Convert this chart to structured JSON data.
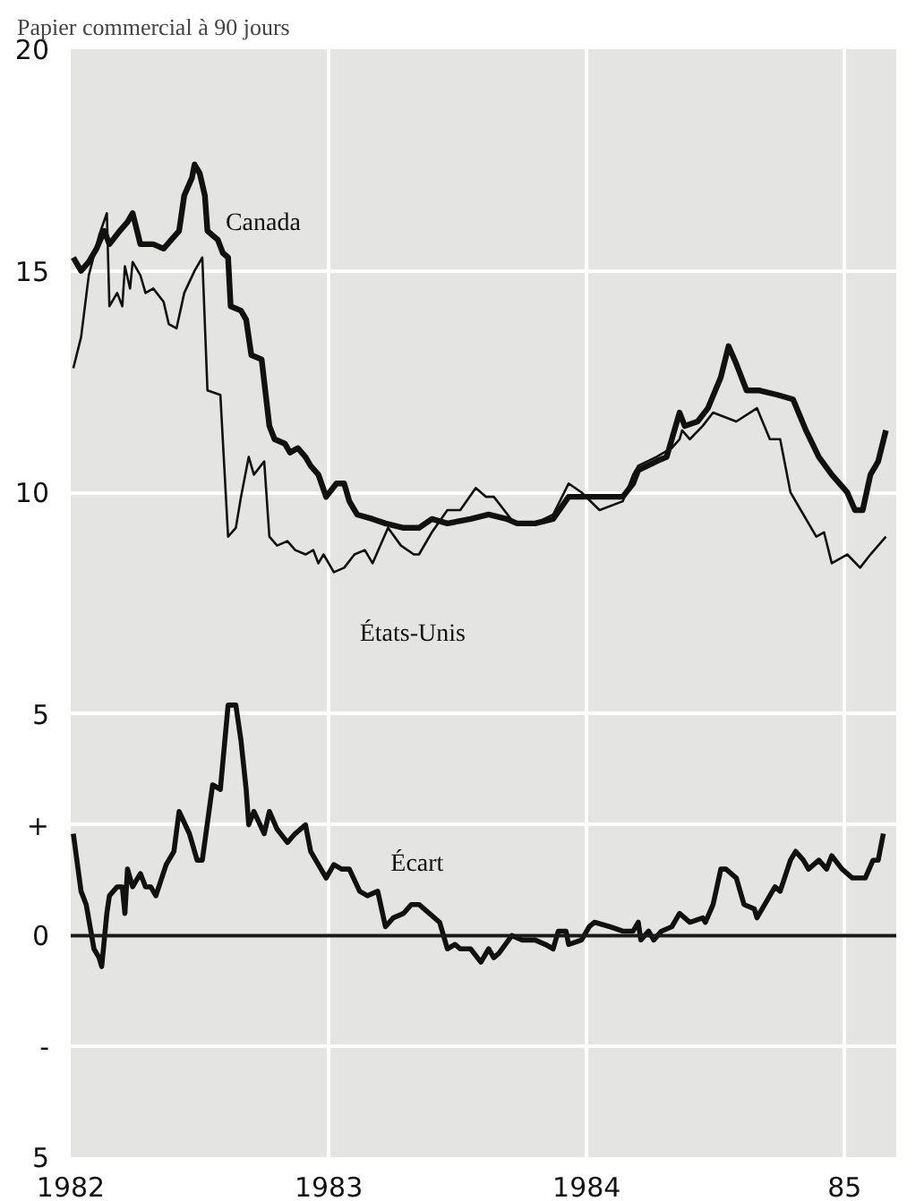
{
  "chart_data": {
    "type": "line",
    "title": "Papier commercial à 90 jours",
    "xlim": [
      1982,
      1985.2
    ],
    "ylim": [
      -5,
      20
    ],
    "xticks": [
      1982,
      1983,
      1984,
      {
        "value": 1985,
        "label": "85"
      }
    ],
    "yticks": [
      20,
      15,
      10,
      5,
      {
        "value": 2.5,
        "label": "+"
      },
      0,
      {
        "value": -2.5,
        "label": "-"
      },
      {
        "value": -5,
        "label": "5"
      }
    ],
    "grid": true,
    "marker": "none",
    "line_style": "solid",
    "ref_lines": [
      {
        "axis": "y",
        "value": 0,
        "label": null,
        "color": "#1a1a1a"
      }
    ],
    "series": [
      {
        "name": "Canada",
        "color": "#111111",
        "x": [
          1982.01,
          1982.04,
          1982.07,
          1982.1,
          1982.13,
          1982.15,
          1982.19,
          1982.22,
          1982.24,
          1982.27,
          1982.32,
          1982.36,
          1982.39,
          1982.42,
          1982.44,
          1982.47,
          1982.48,
          1982.5,
          1982.52,
          1982.53,
          1982.57,
          1982.59,
          1982.61,
          1982.62,
          1982.66,
          1982.68,
          1982.7,
          1982.74,
          1982.77,
          1982.79,
          1982.83,
          1982.85,
          1982.88,
          1982.91,
          1982.93,
          1982.96,
          1982.99,
          1983.03,
          1983.06,
          1983.08,
          1983.11,
          1983.17,
          1983.22,
          1983.29,
          1983.35,
          1983.4,
          1983.46,
          1983.55,
          1983.62,
          1983.69,
          1983.73,
          1983.8,
          1983.87,
          1983.93,
          1983.98,
          1984.05,
          1984.14,
          1984.18,
          1984.2,
          1984.27,
          1984.31,
          1984.36,
          1984.38,
          1984.43,
          1984.47,
          1984.52,
          1984.55,
          1984.58,
          1984.62,
          1984.67,
          1984.74,
          1984.8,
          1984.85,
          1984.9,
          1984.95,
          1985.01,
          1985.04,
          1985.07,
          1985.1,
          1985.13,
          1985.16
        ],
        "values": [
          15.3,
          15.0,
          15.2,
          15.5,
          15.9,
          15.6,
          15.9,
          16.1,
          16.3,
          15.6,
          15.6,
          15.5,
          15.7,
          15.9,
          16.7,
          17.1,
          17.4,
          17.2,
          16.7,
          15.9,
          15.7,
          15.4,
          15.3,
          14.2,
          14.1,
          13.9,
          13.1,
          13.0,
          11.5,
          11.2,
          11.1,
          10.9,
          11.0,
          10.8,
          10.6,
          10.4,
          9.9,
          10.2,
          10.2,
          9.8,
          9.5,
          9.4,
          9.3,
          9.2,
          9.2,
          9.4,
          9.3,
          9.4,
          9.5,
          9.4,
          9.3,
          9.3,
          9.4,
          9.9,
          9.9,
          9.9,
          9.9,
          10.2,
          10.5,
          10.7,
          10.8,
          11.8,
          11.5,
          11.6,
          11.9,
          12.6,
          13.3,
          12.9,
          12.3,
          12.3,
          12.2,
          12.1,
          11.4,
          10.8,
          10.4,
          10.0,
          9.6,
          9.6,
          10.4,
          10.7,
          11.4
        ]
      },
      {
        "name": "États-Unis",
        "color": "#111111",
        "x": [
          1982.01,
          1982.04,
          1982.07,
          1982.11,
          1982.14,
          1982.15,
          1982.18,
          1982.2,
          1982.21,
          1982.23,
          1982.24,
          1982.27,
          1982.29,
          1982.32,
          1982.36,
          1982.38,
          1982.41,
          1982.44,
          1982.48,
          1982.51,
          1982.53,
          1982.58,
          1982.61,
          1982.64,
          1982.66,
          1982.69,
          1982.71,
          1982.75,
          1982.77,
          1982.8,
          1982.84,
          1982.87,
          1982.91,
          1982.94,
          1982.96,
          1982.98,
          1983.02,
          1983.06,
          1983.1,
          1983.14,
          1983.17,
          1983.23,
          1983.28,
          1983.33,
          1983.35,
          1983.4,
          1983.46,
          1983.49,
          1983.51,
          1983.57,
          1983.61,
          1983.64,
          1983.68,
          1983.72,
          1983.8,
          1983.87,
          1983.93,
          1983.98,
          1984.05,
          1984.14,
          1984.18,
          1984.2,
          1984.27,
          1984.33,
          1984.36,
          1984.37,
          1984.4,
          1984.45,
          1984.49,
          1984.58,
          1984.66,
          1984.71,
          1984.75,
          1984.79,
          1984.83,
          1984.89,
          1984.92,
          1984.95,
          1985.01,
          1985.06,
          1985.1,
          1985.16
        ],
        "values": [
          12.8,
          13.5,
          14.9,
          15.8,
          16.3,
          14.2,
          14.5,
          14.2,
          15.1,
          14.6,
          15.2,
          14.9,
          14.5,
          14.6,
          14.3,
          13.8,
          13.7,
          14.5,
          15.0,
          15.3,
          12.3,
          12.2,
          9.0,
          9.2,
          9.9,
          10.8,
          10.4,
          10.7,
          9.0,
          8.8,
          8.9,
          8.7,
          8.6,
          8.7,
          8.4,
          8.6,
          8.2,
          8.3,
          8.6,
          8.7,
          8.4,
          9.2,
          8.8,
          8.6,
          8.6,
          9.1,
          9.6,
          9.6,
          9.6,
          10.1,
          9.9,
          9.9,
          9.6,
          9.3,
          9.3,
          9.5,
          10.2,
          10.0,
          9.6,
          9.8,
          10.4,
          10.6,
          10.8,
          11.0,
          11.2,
          11.4,
          11.2,
          11.5,
          11.8,
          11.6,
          11.9,
          11.2,
          11.2,
          10.0,
          9.6,
          9.0,
          9.1,
          8.4,
          8.6,
          8.3,
          8.6,
          9.0
        ]
      },
      {
        "name": "Écart",
        "color": "#111111",
        "x": [
          1982.01,
          1982.04,
          1982.06,
          1982.09,
          1982.11,
          1982.12,
          1982.14,
          1982.15,
          1982.18,
          1982.2,
          1982.21,
          1982.22,
          1982.24,
          1982.27,
          1982.29,
          1982.31,
          1982.33,
          1982.37,
          1982.4,
          1982.42,
          1982.46,
          1982.49,
          1982.51,
          1982.55,
          1982.58,
          1982.61,
          1982.64,
          1982.66,
          1982.68,
          1982.69,
          1982.71,
          1982.75,
          1982.77,
          1982.8,
          1982.84,
          1982.87,
          1982.91,
          1982.93,
          1982.96,
          1982.99,
          1983.02,
          1983.05,
          1983.08,
          1983.12,
          1983.15,
          1983.19,
          1983.22,
          1983.25,
          1983.29,
          1983.32,
          1983.35,
          1983.39,
          1983.43,
          1983.46,
          1983.49,
          1983.51,
          1983.55,
          1983.59,
          1983.62,
          1983.64,
          1983.66,
          1983.71,
          1983.75,
          1983.8,
          1983.84,
          1983.87,
          1983.89,
          1983.92,
          1983.93,
          1983.98,
          1984.01,
          1984.03,
          1984.09,
          1984.14,
          1984.18,
          1984.2,
          1984.21,
          1984.24,
          1984.26,
          1984.29,
          1984.33,
          1984.36,
          1984.4,
          1984.45,
          1984.46,
          1984.49,
          1984.52,
          1984.54,
          1984.58,
          1984.61,
          1984.65,
          1984.66,
          1984.7,
          1984.73,
          1984.75,
          1984.79,
          1984.81,
          1984.84,
          1984.86,
          1984.9,
          1984.93,
          1984.95,
          1984.99,
          1985.03,
          1985.08,
          1985.11,
          1985.13,
          1985.15
        ],
        "values": [
          2.3,
          1.0,
          0.7,
          -0.3,
          -0.5,
          -0.7,
          0.5,
          0.9,
          1.1,
          1.1,
          0.5,
          1.5,
          1.1,
          1.4,
          1.1,
          1.1,
          0.9,
          1.6,
          1.9,
          2.8,
          2.3,
          1.7,
          1.7,
          3.4,
          3.3,
          5.2,
          5.2,
          4.4,
          3.3,
          2.5,
          2.8,
          2.3,
          2.8,
          2.4,
          2.1,
          2.3,
          2.5,
          1.9,
          1.6,
          1.3,
          1.6,
          1.5,
          1.5,
          1.0,
          0.9,
          1.0,
          0.2,
          0.4,
          0.5,
          0.7,
          0.7,
          0.5,
          0.3,
          -0.3,
          -0.2,
          -0.3,
          -0.3,
          -0.6,
          -0.3,
          -0.5,
          -0.4,
          0.0,
          -0.1,
          -0.1,
          -0.2,
          -0.3,
          0.1,
          0.1,
          -0.2,
          -0.1,
          0.2,
          0.3,
          0.2,
          0.1,
          0.1,
          0.3,
          -0.1,
          0.1,
          -0.1,
          0.1,
          0.2,
          0.5,
          0.3,
          0.4,
          0.3,
          0.7,
          1.5,
          1.5,
          1.3,
          0.7,
          0.6,
          0.4,
          0.8,
          1.1,
          1.0,
          1.7,
          1.9,
          1.7,
          1.5,
          1.7,
          1.5,
          1.8,
          1.5,
          1.3,
          1.3,
          1.7,
          1.7,
          2.3
        ]
      }
    ]
  }
}
